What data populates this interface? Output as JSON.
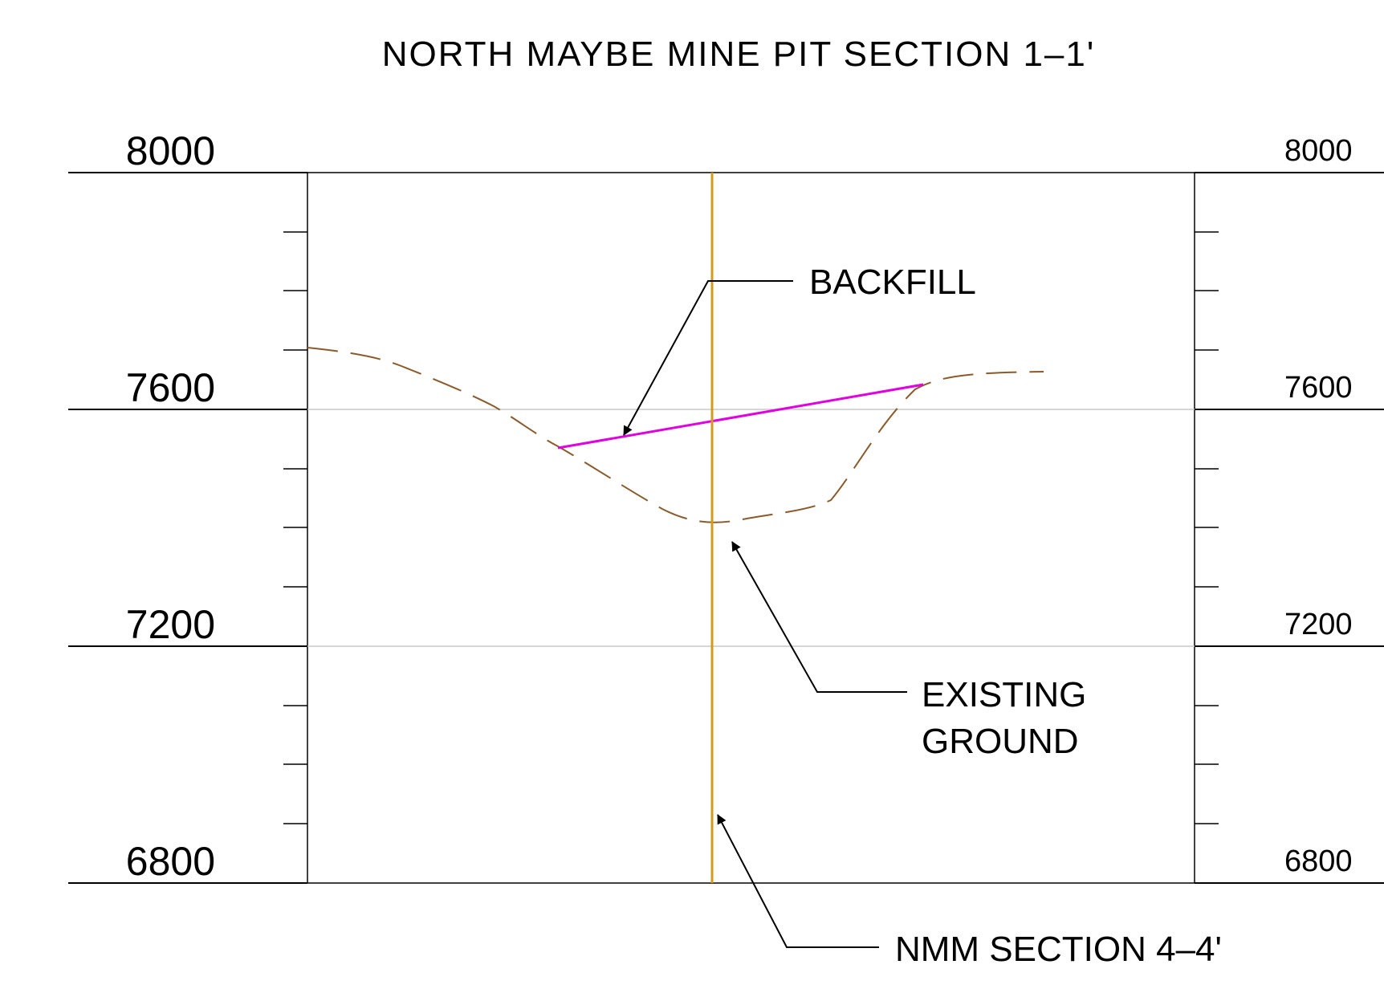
{
  "title": "NORTH MAYBE MINE PIT SECTION 1–1'",
  "elevations": {
    "left": [
      "8000",
      "7600",
      "7200",
      "6800"
    ],
    "right": [
      "8000",
      "7600",
      "7200",
      "6800"
    ]
  },
  "labels": {
    "backfill": "BACKFILL",
    "existing_ground_line1": "EXISTING",
    "existing_ground_line2": "GROUND",
    "nmm_section": "NMM SECTION 4–4'"
  },
  "colors": {
    "backfill_line": "#e000e0",
    "existing_ground_line": "#8b5a2b",
    "section_line": "#d49a1a",
    "frame": "#000000",
    "gridline": "#c8c8c8"
  }
}
